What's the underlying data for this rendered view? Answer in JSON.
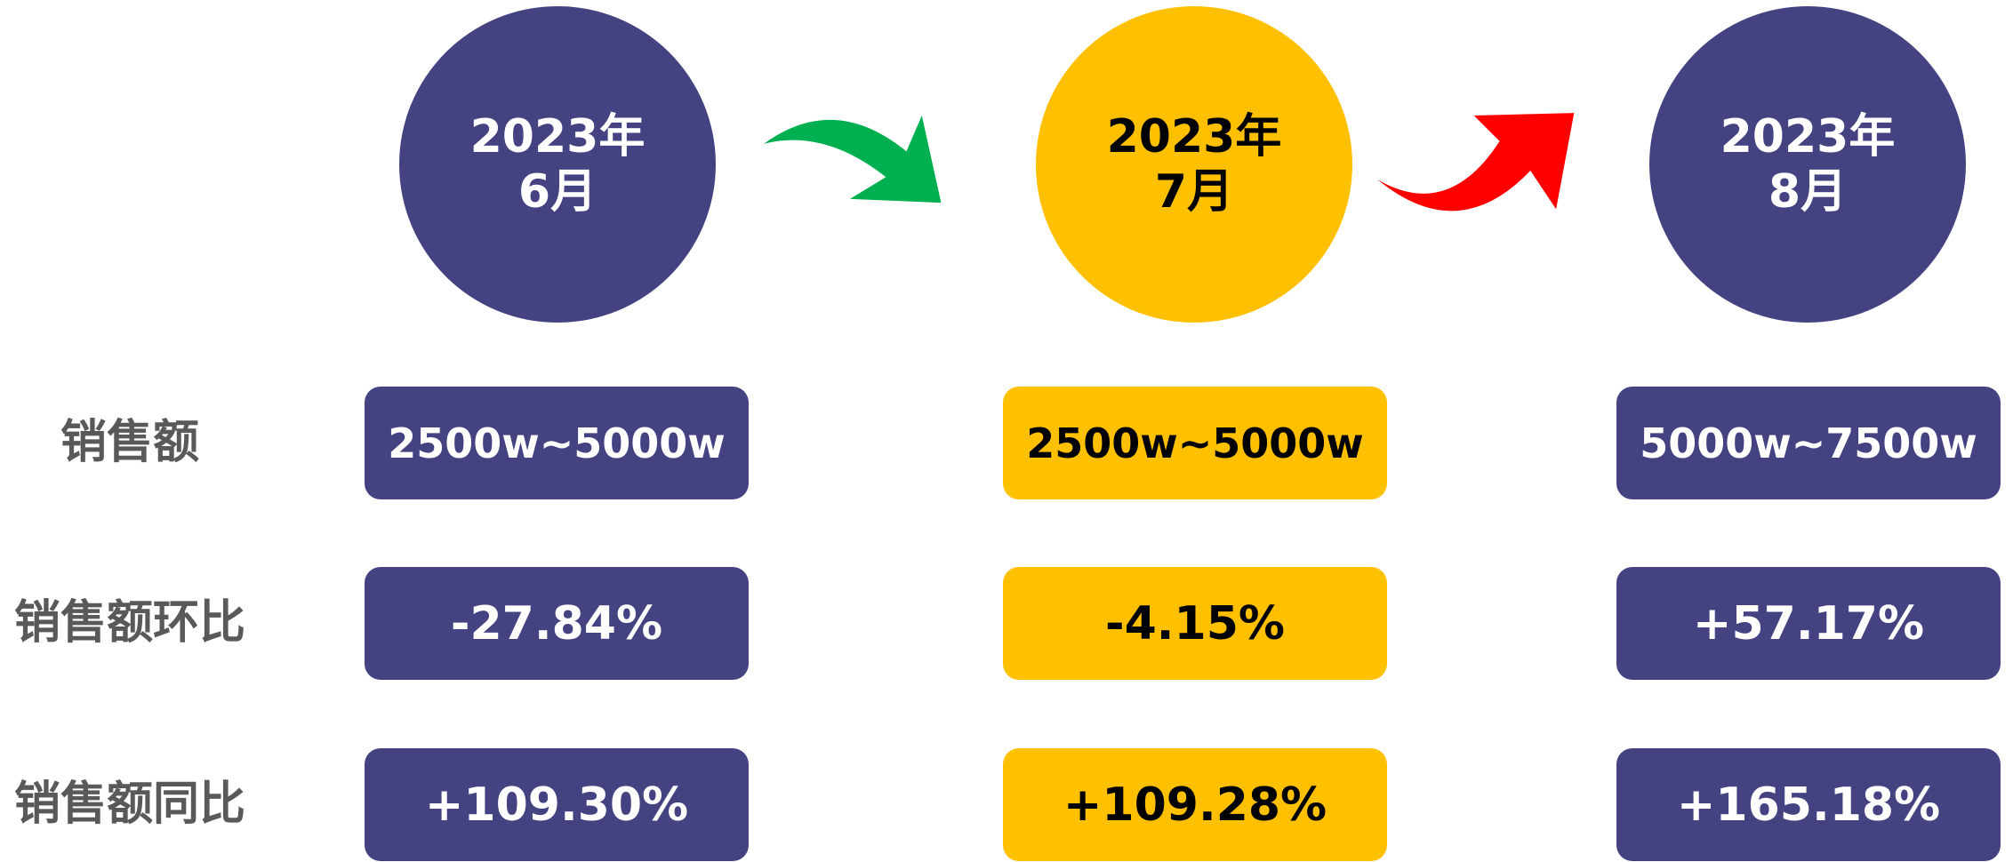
{
  "row_labels": [
    "销售额",
    "销售额环比",
    "销售额同比"
  ],
  "columns": [
    {
      "title": [
        "2023年",
        "6月"
      ],
      "color": "#454282",
      "text_color": "#ffffff",
      "cells": [
        "2500w~5000w",
        "-27.84%",
        "+109.30%"
      ]
    },
    {
      "title": [
        "2023年",
        "7月"
      ],
      "color": "#ffc000",
      "text_color": "#000000",
      "cells": [
        "2500w~5000w",
        "-4.15%",
        "+109.28%"
      ]
    },
    {
      "title": [
        "2023年",
        "8月"
      ],
      "color": "#454282",
      "text_color": "#ffffff",
      "cells": [
        "5000w~7500w",
        "+57.17%",
        "+165.18%"
      ]
    }
  ]
}
